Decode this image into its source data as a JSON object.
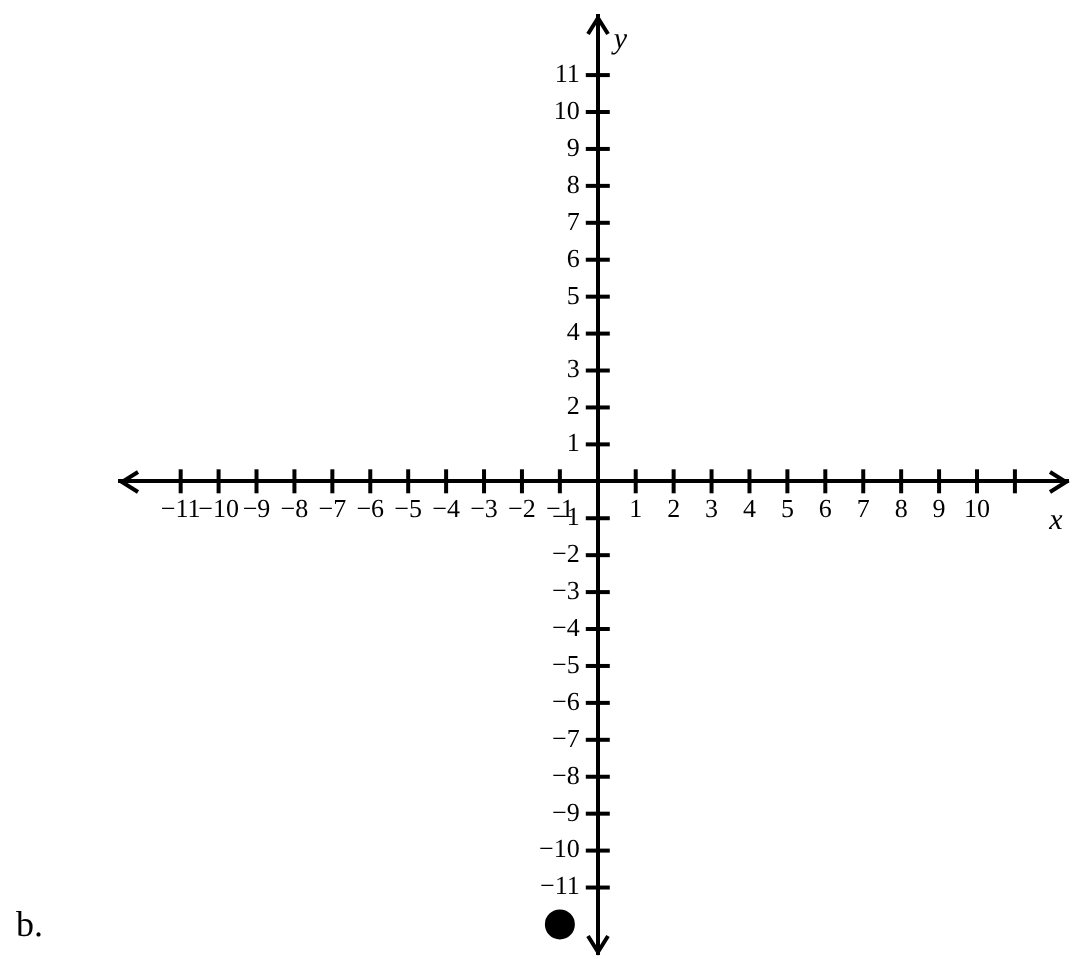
{
  "chart_data": {
    "type": "scatter",
    "xlabel": "x",
    "ylabel": "y",
    "series": [
      {
        "color": "#000000",
        "x": [
          -1
        ],
        "values": [
          -12
        ]
      }
    ],
    "xlim": [
      -12.6,
      12.4
    ],
    "ylim": [
      -12.8,
      12.6
    ],
    "xticks": [
      -11,
      -10,
      -9,
      -8,
      -7,
      -6,
      -5,
      -4,
      -3,
      -2,
      -1,
      1,
      2,
      3,
      4,
      5,
      6,
      7,
      8,
      9,
      10,
      {
        "value": 11,
        "label": null
      }
    ],
    "yticks": [
      -11,
      -10,
      -9,
      -8,
      -7,
      -6,
      -5,
      -4,
      -3,
      -2,
      -1,
      1,
      2,
      3,
      4,
      5,
      6,
      7,
      8,
      9,
      10,
      11
    ],
    "grid": false,
    "legend": false,
    "marker": "circle",
    "annotations": [
      "b."
    ]
  }
}
